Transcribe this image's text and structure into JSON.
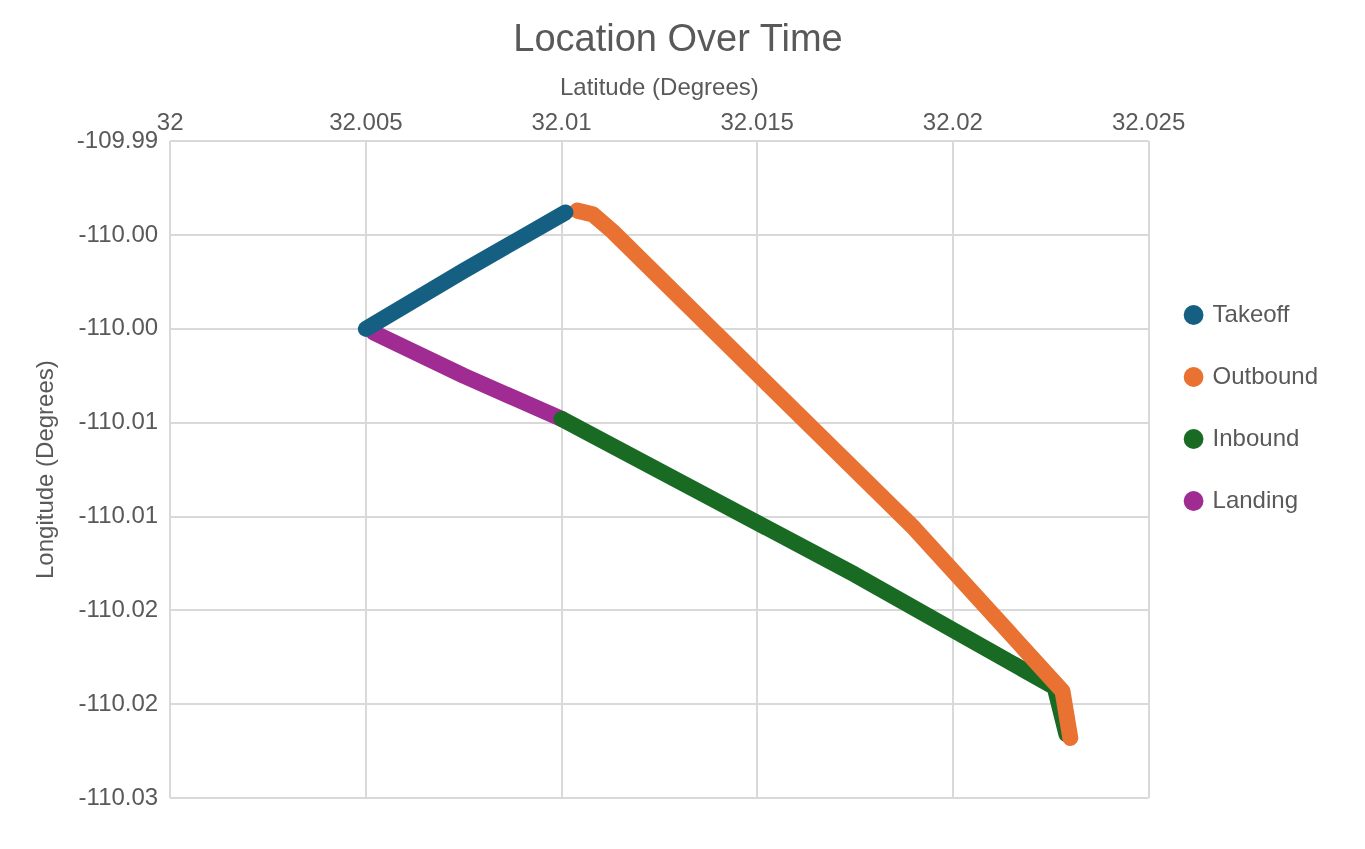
{
  "chart_data": {
    "type": "line",
    "title": "Location Over Time",
    "xlabel": "Latitude (Degrees)",
    "ylabel": "Longitude (Degrees)",
    "xlim": [
      32,
      32.025
    ],
    "xticks": [
      32,
      32.005,
      32.01,
      32.015,
      32.02,
      32.025
    ],
    "ylim": [
      -110.025,
      -109.99
    ],
    "yticks": [
      -109.99,
      {
        "value": -109.995,
        "label": "-110.00"
      },
      {
        "value": -110.0,
        "label": "-110.00"
      },
      {
        "value": -110.005,
        "label": "-110.01"
      },
      {
        "value": -110.01,
        "label": "-110.01"
      },
      {
        "value": -110.015,
        "label": "-110.02"
      },
      {
        "value": -110.02,
        "label": "-110.02"
      },
      {
        "value": -110.025,
        "label": "-110.03"
      }
    ],
    "grid": true,
    "legend": "right",
    "line_style": "solid",
    "series": [
      {
        "name": "Takeoff",
        "color": "#156082",
        "x": [
          32.0101,
          32.0075,
          32.005
        ],
        "values": [
          -109.9938,
          -109.9969,
          -110.0
        ]
      },
      {
        "name": "Outbound",
        "color": "#e97132",
        "x": [
          32.0104,
          32.0108,
          32.0113,
          32.015,
          32.019,
          32.0228,
          32.023
        ],
        "values": [
          -109.9937,
          -109.9939,
          -109.9948,
          -110.0024,
          -110.0106,
          -110.0193,
          -110.0218
        ]
      },
      {
        "name": "Inbound",
        "color": "#196b24",
        "x": [
          32.0229,
          32.0226,
          32.0175,
          32.01
        ],
        "values": [
          -110.0216,
          -110.0191,
          -110.0131,
          -110.0048
        ]
      },
      {
        "name": "Landing",
        "color": "#a02b93",
        "x": [
          32.01,
          32.0075,
          32.0052
        ],
        "values": [
          -110.0048,
          -110.0025,
          -110.0002
        ]
      }
    ]
  }
}
